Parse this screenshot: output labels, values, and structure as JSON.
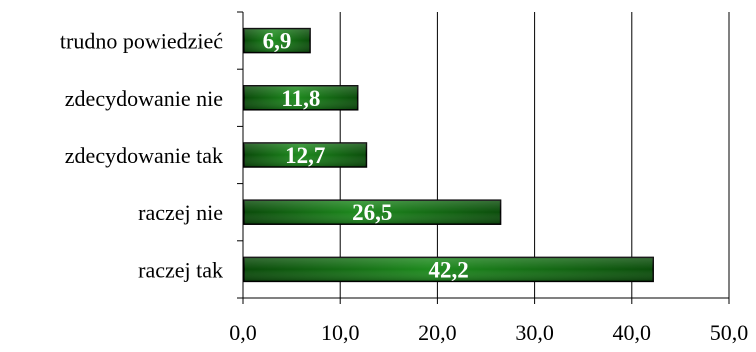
{
  "chart_data": {
    "type": "bar",
    "orientation": "horizontal",
    "categories": [
      "trudno powiedzieć",
      "zdecydowanie nie",
      "zdecydowanie tak",
      "raczej nie",
      "raczej tak"
    ],
    "values": [
      6.9,
      11.8,
      12.7,
      26.5,
      42.2
    ],
    "value_labels": [
      "6,9",
      "11,8",
      "12,7",
      "26,5",
      "42,2"
    ],
    "x_ticks": [
      "0,0",
      "10,0",
      "20,0",
      "30,0",
      "40,0",
      "50,0"
    ],
    "xlim": [
      0,
      50
    ],
    "grid": true,
    "bar_color": "#1f7a1f",
    "title": "",
    "xlabel": "",
    "ylabel": ""
  }
}
